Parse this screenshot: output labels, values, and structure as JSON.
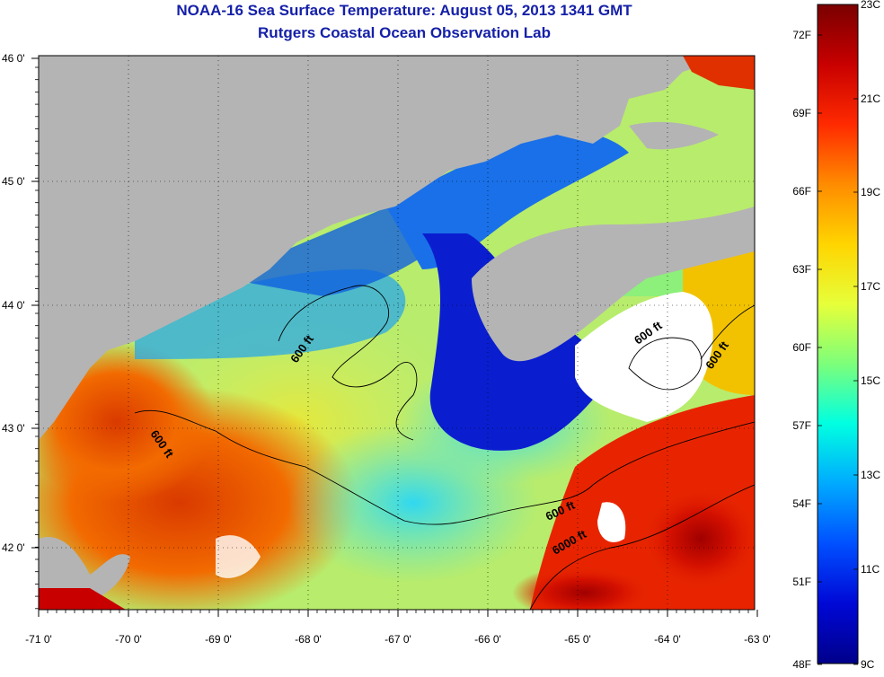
{
  "title": {
    "line1": "NOAA-16 Sea Surface Temperature:  August 05, 2013 1341 GMT",
    "line2": "Rutgers Coastal Ocean Observation Lab"
  },
  "map": {
    "lon_ticks": [
      "-71 0'",
      "-70 0'",
      "-69 0'",
      "-68 0'",
      "-67 0'",
      "-66 0'",
      "-65 0'",
      "-64 0'",
      "-63 0'"
    ],
    "lat_ticks": [
      "46 0'",
      "45 0'",
      "44 0'",
      "43 0'",
      "42 0'"
    ],
    "contour_labels": [
      "600 ft",
      "600 ft",
      "600 ft",
      "600 ft",
      "600 ft",
      "6000 ft"
    ],
    "colors": {
      "land": "#b4b4b4",
      "cloud": "#ffffff",
      "contour": "#000000"
    }
  },
  "colorbar": {
    "fahrenheit": [
      "72F",
      "69F",
      "66F",
      "63F",
      "60F",
      "57F",
      "54F",
      "51F",
      "48F"
    ],
    "celsius": [
      "23C",
      "21C",
      "19C",
      "17C",
      "15C",
      "13C",
      "11C",
      "9C"
    ],
    "gradient": [
      "#7a0000",
      "#c80000",
      "#ff2a00",
      "#ff8c00",
      "#ffd500",
      "#e6ff3a",
      "#7dff7a",
      "#00ffe1",
      "#00aaff",
      "#0050ff",
      "#0008d6",
      "#00008a"
    ]
  }
}
